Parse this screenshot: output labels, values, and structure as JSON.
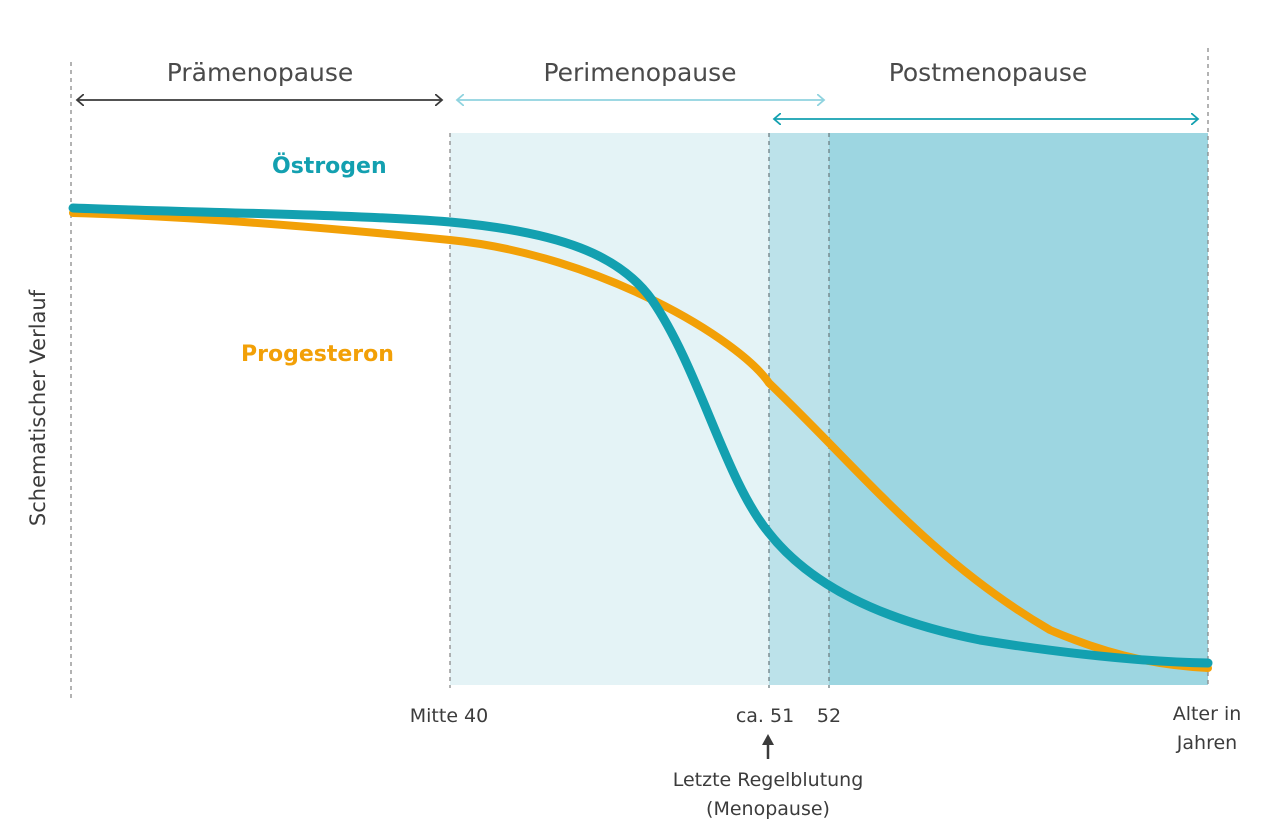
{
  "phases": {
    "pre": "Prämenopause",
    "peri": "Perimenopause",
    "post": "Postmenopause"
  },
  "series": {
    "estrogen": "Östrogen",
    "progesterone": "Progesteron"
  },
  "axis": {
    "y_label": "Schematischer Verlauf",
    "x_label_line1": "Alter in",
    "x_label_line2": "Jahren"
  },
  "ticks": {
    "mid40": "Mitte 40",
    "ca51": "ca. 51",
    "t52": "52"
  },
  "annotation": {
    "line1": "Letzte Regelblutung",
    "line2": "(Menopause)"
  },
  "colors": {
    "estrogen": "#13A0B0",
    "progesterone": "#F2A007",
    "peri_shade": "#E4F3F6",
    "overlap_shade": "#BCE2EA",
    "post_shade": "#9DD6E1",
    "pre_arrow": "#3a3a3a",
    "peri_arrow": "#8FD3DF",
    "post_arrow": "#13A0B0"
  }
}
